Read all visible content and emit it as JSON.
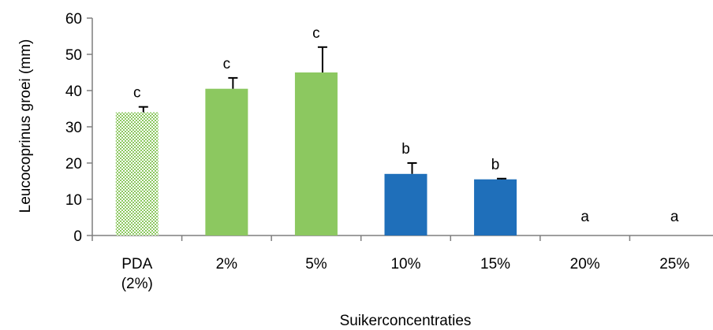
{
  "chart_data": {
    "type": "bar",
    "title": "",
    "xlabel": "Suikerconcentraties",
    "ylabel": "Leucocoprinus groei (mm)",
    "ylim": [
      0,
      60
    ],
    "yticks": [
      0,
      10,
      20,
      30,
      40,
      50,
      60
    ],
    "grid": false,
    "categories": [
      [
        "PDA",
        "(2%)"
      ],
      [
        "2%"
      ],
      [
        "5%"
      ],
      [
        "10%"
      ],
      [
        "15%"
      ],
      [
        "20%"
      ],
      [
        "25%"
      ]
    ],
    "values": [
      34,
      40.5,
      45,
      17,
      15.5,
      0,
      0
    ],
    "errors": [
      1.5,
      3,
      7,
      3,
      0.2,
      0,
      0
    ],
    "significance": [
      "c",
      "c",
      "c",
      "b",
      "b",
      "a",
      "a"
    ],
    "bar_styles": [
      "hatched-green",
      "green",
      "green",
      "blue",
      "blue",
      "none",
      "none"
    ],
    "colors": {
      "green": "#8cc860",
      "green_hatch": "#8cc860",
      "blue": "#1f6fba",
      "axis": "#7f7f7f",
      "error": "#000000"
    }
  }
}
